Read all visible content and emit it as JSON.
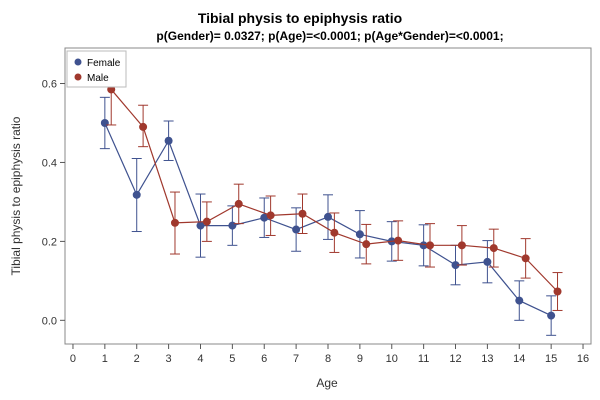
{
  "chart_data": {
    "type": "line",
    "title": "Tibial physis to epiphysis ratio",
    "subtitle": "p(Gender)= 0.0327; p(Age)=<0.0001; p(Age*Gender)=<0.0001;",
    "xlabel": "Age",
    "ylabel": "Tibial physis to epiphysis ratio",
    "xlim": [
      -0.25,
      16.25
    ],
    "ylim": [
      -0.06,
      0.69
    ],
    "x_ticks": [
      0,
      1,
      2,
      3,
      4,
      5,
      6,
      7,
      8,
      9,
      10,
      11,
      12,
      13,
      14,
      15,
      16
    ],
    "y_ticks": [
      0.0,
      0.2,
      0.4,
      0.6
    ],
    "y_tick_labels": [
      "0.0",
      "0.2",
      "0.4",
      "0.6"
    ],
    "grid": false,
    "legend_position": "top-left",
    "error_bars": true,
    "series": [
      {
        "name": "Female",
        "color": "#3f528f",
        "points": [
          {
            "x": 1,
            "y": 0.5,
            "lo": 0.435,
            "hi": 0.565
          },
          {
            "x": 2,
            "y": 0.318,
            "lo": 0.225,
            "hi": 0.41
          },
          {
            "x": 3,
            "y": 0.455,
            "lo": 0.405,
            "hi": 0.505
          },
          {
            "x": 4,
            "y": 0.24,
            "lo": 0.16,
            "hi": 0.32
          },
          {
            "x": 5,
            "y": 0.24,
            "lo": 0.19,
            "hi": 0.29
          },
          {
            "x": 6,
            "y": 0.26,
            "lo": 0.21,
            "hi": 0.31
          },
          {
            "x": 7,
            "y": 0.23,
            "lo": 0.175,
            "hi": 0.285
          },
          {
            "x": 8,
            "y": 0.262,
            "lo": 0.205,
            "hi": 0.318
          },
          {
            "x": 9,
            "y": 0.218,
            "lo": 0.158,
            "hi": 0.278
          },
          {
            "x": 10,
            "y": 0.2,
            "lo": 0.15,
            "hi": 0.25
          },
          {
            "x": 11,
            "y": 0.19,
            "lo": 0.138,
            "hi": 0.242
          },
          {
            "x": 12,
            "y": 0.14,
            "lo": 0.09,
            "hi": 0.19
          },
          {
            "x": 13,
            "y": 0.148,
            "lo": 0.095,
            "hi": 0.202
          },
          {
            "x": 14,
            "y": 0.05,
            "lo": 0.0,
            "hi": 0.1
          },
          {
            "x": 15,
            "y": 0.012,
            "lo": -0.038,
            "hi": 0.062
          }
        ]
      },
      {
        "name": "Male",
        "color": "#a0382d",
        "points": [
          {
            "x": 1.2,
            "y": 0.585,
            "lo": 0.495,
            "hi": 0.675
          },
          {
            "x": 2.2,
            "y": 0.49,
            "lo": 0.44,
            "hi": 0.545
          },
          {
            "x": 3.2,
            "y": 0.247,
            "lo": 0.168,
            "hi": 0.325
          },
          {
            "x": 4.2,
            "y": 0.25,
            "lo": 0.2,
            "hi": 0.3
          },
          {
            "x": 5.2,
            "y": 0.295,
            "lo": 0.245,
            "hi": 0.345
          },
          {
            "x": 6.2,
            "y": 0.266,
            "lo": 0.215,
            "hi": 0.315
          },
          {
            "x": 7.2,
            "y": 0.27,
            "lo": 0.22,
            "hi": 0.32
          },
          {
            "x": 8.2,
            "y": 0.222,
            "lo": 0.172,
            "hi": 0.272
          },
          {
            "x": 9.2,
            "y": 0.193,
            "lo": 0.143,
            "hi": 0.243
          },
          {
            "x": 10.2,
            "y": 0.202,
            "lo": 0.152,
            "hi": 0.252
          },
          {
            "x": 11.2,
            "y": 0.19,
            "lo": 0.135,
            "hi": 0.245
          },
          {
            "x": 12.2,
            "y": 0.19,
            "lo": 0.14,
            "hi": 0.24
          },
          {
            "x": 13.2,
            "y": 0.183,
            "lo": 0.135,
            "hi": 0.231
          },
          {
            "x": 14.2,
            "y": 0.157,
            "lo": 0.107,
            "hi": 0.207
          },
          {
            "x": 15.2,
            "y": 0.073,
            "lo": 0.025,
            "hi": 0.121
          }
        ]
      }
    ]
  }
}
